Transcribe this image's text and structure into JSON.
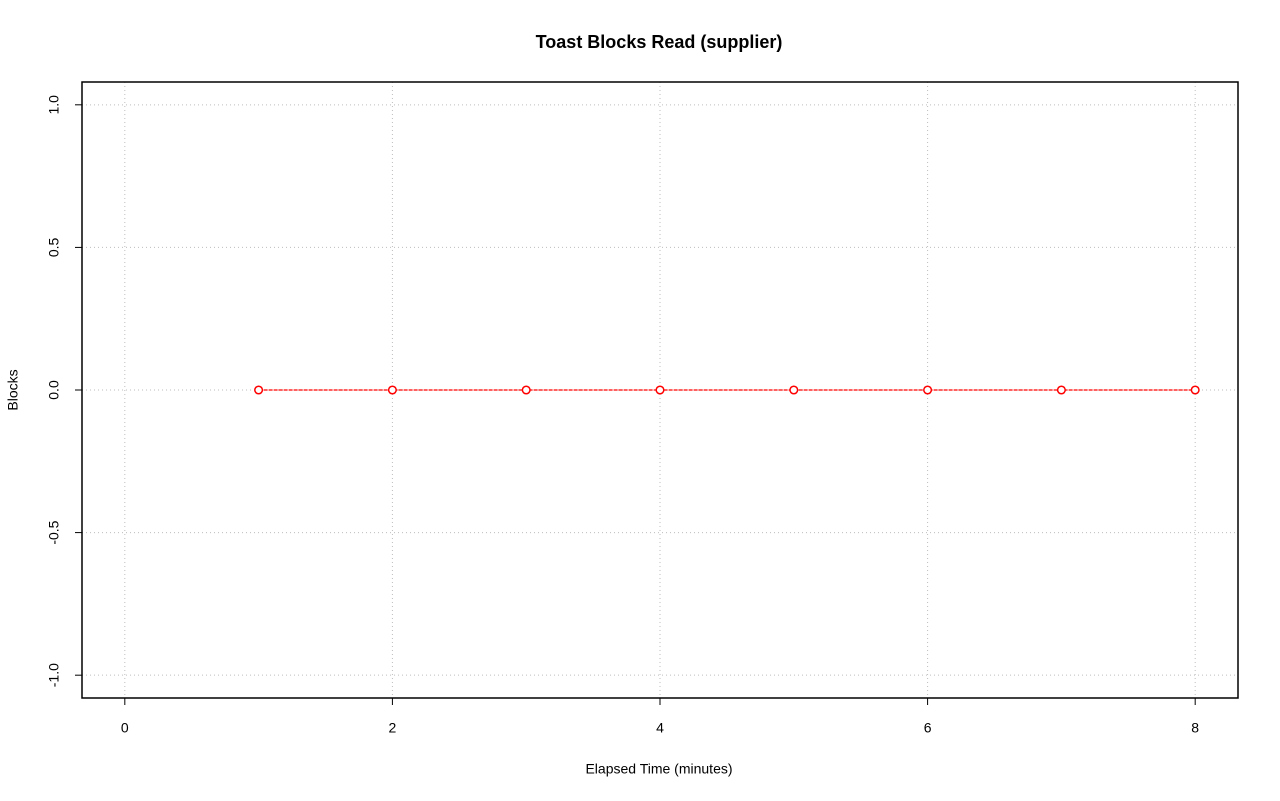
{
  "chart_data": {
    "type": "line",
    "title": "Toast Blocks Read (supplier)",
    "x_label": "Elapsed Time (minutes)",
    "y_label": "Blocks",
    "x": [
      1,
      2,
      3,
      4,
      5,
      6,
      7,
      8
    ],
    "values": [
      0,
      0,
      0,
      0,
      0,
      0,
      0,
      0
    ],
    "color": "#ff0000",
    "xlim": [
      -0.32,
      8.32
    ],
    "xticks": [
      0,
      2,
      4,
      6,
      8
    ],
    "ylim": [
      -1.08,
      1.08
    ],
    "yticks": [
      {
        "value": -1,
        "label": "-1.0"
      },
      {
        "value": -0.5,
        "label": "-0.5"
      },
      {
        "value": 0,
        "label": "0.0"
      },
      {
        "value": 0.5,
        "label": "0.5"
      },
      {
        "value": 1,
        "label": "1.0"
      }
    ],
    "grid": true
  }
}
